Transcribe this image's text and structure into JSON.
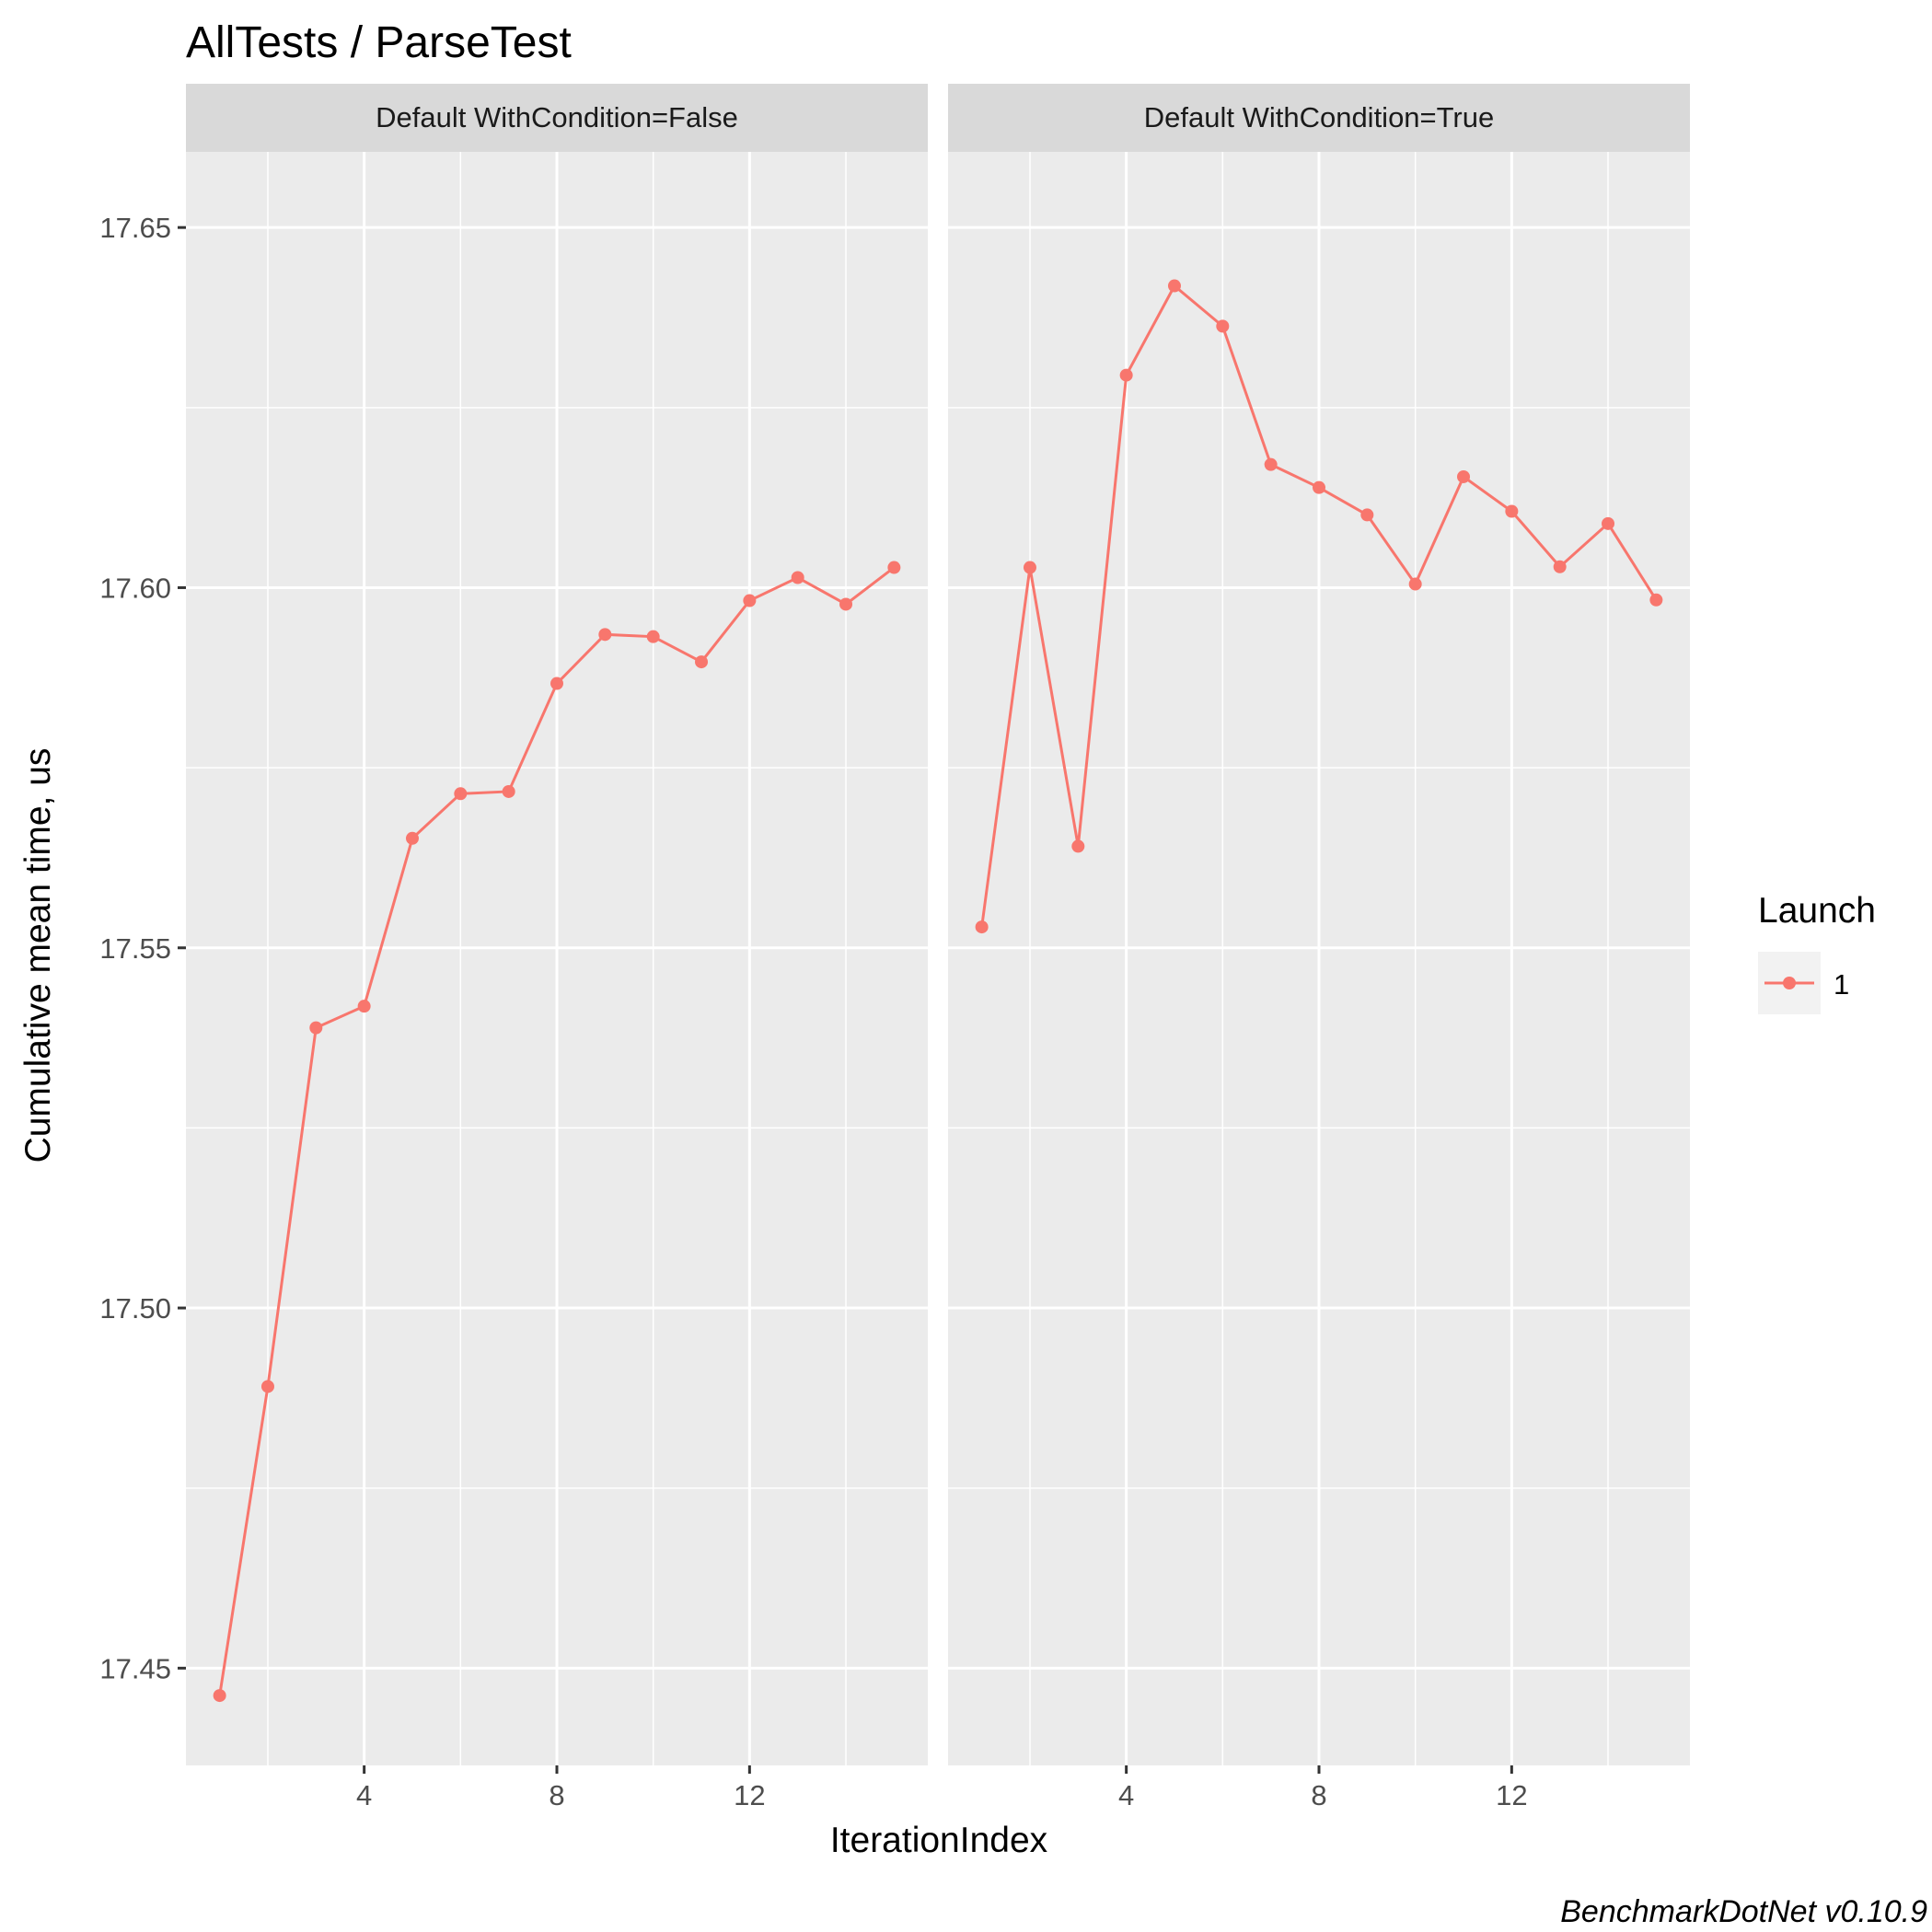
{
  "chart_data": {
    "type": "line",
    "title": "AllTests / ParseTest",
    "xlabel": "IterationIndex",
    "ylabel": "Cumulative mean time, us",
    "caption": "BenchmarkDotNet v0.10.9",
    "xlim": [
      0.3,
      15.7
    ],
    "ylim": [
      17.4365,
      17.6605
    ],
    "x_ticks": [
      4,
      8,
      12
    ],
    "y_ticks": [
      17.45,
      17.5,
      17.55,
      17.6,
      17.65
    ],
    "y_tick_labels": [
      "17.45",
      "17.50",
      "17.55",
      "17.60",
      "17.65"
    ],
    "x_tick_labels": [
      "4",
      "8",
      "12"
    ],
    "grid": true,
    "legend": {
      "title": "Launch",
      "position": "right",
      "entries": [
        "1"
      ]
    },
    "series_color": "#F8766D",
    "panels": [
      {
        "strip": "Default WithCondition=False",
        "series": [
          {
            "name": "1",
            "x": [
              1,
              2,
              3,
              4,
              5,
              6,
              7,
              8,
              9,
              10,
              11,
              12,
              13,
              14,
              15
            ],
            "y": [
              17.4462,
              17.4891,
              17.5389,
              17.5419,
              17.5652,
              17.5714,
              17.5717,
              17.5867,
              17.5935,
              17.5932,
              17.5897,
              17.5982,
              17.6014,
              17.5977,
              17.6028
            ]
          }
        ]
      },
      {
        "strip": "Default WithCondition=True",
        "series": [
          {
            "name": "1",
            "x": [
              1,
              2,
              3,
              4,
              5,
              6,
              7,
              8,
              9,
              10,
              11,
              12,
              13,
              14,
              15
            ],
            "y": [
              17.5529,
              17.6028,
              17.5641,
              17.6295,
              17.6419,
              17.6363,
              17.6171,
              17.6139,
              17.6101,
              17.6005,
              17.6154,
              17.6106,
              17.6029,
              17.6089,
              17.5983
            ]
          }
        ]
      }
    ]
  }
}
